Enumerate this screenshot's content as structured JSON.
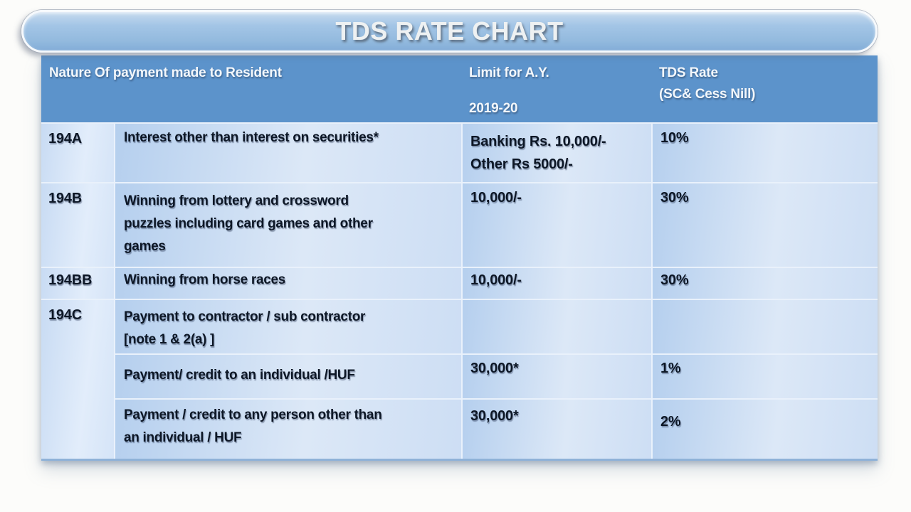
{
  "title_banner": {
    "title": "TDS RATE CHART"
  },
  "table": {
    "header": {
      "nature": "Nature Of payment made to Resident",
      "limit_line1": "Limit for A.Y.",
      "limit_line2": "2019-20",
      "rate_line1": "TDS Rate",
      "rate_line2": "(SC& Cess Nill)"
    },
    "rows": [
      {
        "section": "194A",
        "nature": "Interest other than interest on securities*",
        "limit_lines": [
          "Banking Rs. 10,000/-",
          "Other Rs 5000/-"
        ],
        "rate": "10%"
      },
      {
        "section": "194B",
        "nature_lines": [
          "Winning from lottery and crossword",
          "puzzles including card games and other",
          "games"
        ],
        "limit": "10,000/-",
        "rate": "30%"
      },
      {
        "section": "194BB",
        "nature": "Winning from horse races",
        "limit": "10,000/-",
        "rate": "30%"
      },
      {
        "section": "194C",
        "nature_lines": [
          "Payment to contractor / sub contractor",
          "[note 1 & 2(a) ]"
        ],
        "limit": "",
        "rate": ""
      },
      {
        "nature": "Payment/ credit to an individual /HUF",
        "limit": "30,000*",
        "rate": "1%"
      },
      {
        "nature_lines": [
          "Payment / credit to any person other than",
          "an individual / HUF"
        ],
        "limit": "30,000*",
        "rate": "2%"
      }
    ]
  },
  "colors": {
    "header_bg": "#5c93cb",
    "banner_top": "#c6daee",
    "banner_bottom": "#83add8",
    "cell_gradient_dark": "#b5cfee",
    "cell_gradient_light": "#dce8f7",
    "body_text": "#0d1726",
    "header_text": "#f3f7fb",
    "table_bottom_border": "#8fb2d8"
  }
}
